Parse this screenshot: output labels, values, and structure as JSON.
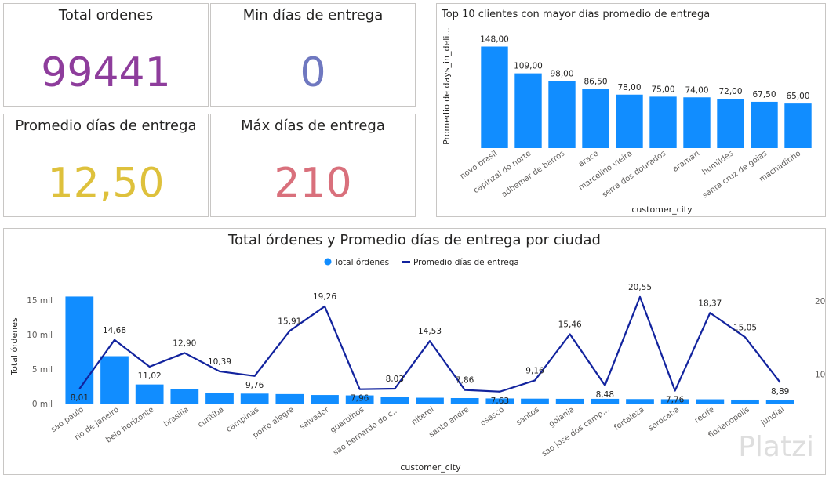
{
  "kpis": {
    "total_ordenes": {
      "title": "Total ordenes",
      "value": "99441",
      "color": "#8e3d9c"
    },
    "min_dias": {
      "title": "Min días de entrega",
      "value": "0",
      "color": "#6f78c0"
    },
    "promedio_dias": {
      "title": "Promedio días de entrega",
      "value": "12,50",
      "color": "#dec13c"
    },
    "max_dias": {
      "title": "Máx días de entrega",
      "value": "210",
      "color": "#d9707c"
    }
  },
  "watermark": "Platzi",
  "chart_data": [
    {
      "type": "bar",
      "title": "Top 10 clientes con mayor días promedio de entrega",
      "xlabel": "customer_city",
      "ylabel": "Promedio de days_in_deli...",
      "categories": [
        "novo brasil",
        "capinzal do norte",
        "adhemar de barros",
        "arace",
        "marcelino vieira",
        "serra dos dourados",
        "aramari",
        "humildes",
        "santa cruz de goias",
        "machadinho"
      ],
      "values": [
        148,
        109,
        98,
        86.5,
        78,
        75,
        74,
        72,
        67.5,
        65
      ],
      "value_labels": [
        "148,00",
        "109,00",
        "98,00",
        "86,50",
        "78,00",
        "75,00",
        "74,00",
        "72,00",
        "67,50",
        "65,00"
      ],
      "ylim": [
        0,
        160
      ],
      "color": "#118dff"
    },
    {
      "type": "bar+line",
      "title": "Total órdenes y Promedio días de entrega por ciudad",
      "xlabel": "customer_city",
      "ylabel": "Total órdenes",
      "legend": [
        "Total órdenes",
        "Promedio días de entrega"
      ],
      "legend_position": "top-center",
      "categories": [
        "sao paulo",
        "rio de janeiro",
        "belo horizonte",
        "brasilia",
        "curitiba",
        "campinas",
        "porto alegre",
        "salvador",
        "guarulhos",
        "sao bernardo do c...",
        "niteroi",
        "santo andre",
        "osasco",
        "santos",
        "goiania",
        "sao jose dos camp...",
        "fortaleza",
        "sorocaba",
        "recife",
        "florianopolis",
        "jundiai"
      ],
      "series": [
        {
          "name": "Total órdenes",
          "axis": "left",
          "color": "#118dff",
          "values": [
            15540,
            6882,
            2773,
            2131,
            1521,
            1444,
            1379,
            1245,
            1189,
            938,
            850,
            797,
            746,
            717,
            692,
            691,
            654,
            633,
            621,
            570,
            565
          ]
        },
        {
          "name": "Promedio días de entrega",
          "axis": "right",
          "color": "#12239e",
          "values": [
            8.01,
            14.68,
            11.02,
            12.9,
            10.39,
            9.76,
            15.91,
            19.26,
            7.96,
            8.03,
            14.53,
            7.86,
            7.63,
            9.16,
            15.46,
            8.48,
            20.55,
            7.76,
            18.37,
            15.05,
            8.89
          ],
          "value_labels": [
            "8,01",
            "14,68",
            "11,02",
            "12,90",
            "10,39",
            "9,76",
            "15,91",
            "19,26",
            "7,96",
            "8,03",
            "14,53",
            "7,86",
            "7,63",
            "9,16",
            "15,46",
            "8,48",
            "20,55",
            "7,76",
            "18,37",
            "15,05",
            "8,89"
          ]
        }
      ],
      "yleft_ticks": [
        "0 mil",
        "5 mil",
        "10 mil",
        "15 mil"
      ],
      "yleft_tick_values": [
        0,
        5000,
        10000,
        15000
      ],
      "yleft_lim": [
        0,
        16500
      ],
      "yright_ticks": [
        "10",
        "20"
      ],
      "yright_tick_values": [
        10,
        20
      ],
      "yright_lim": [
        6,
        21.5
      ]
    }
  ]
}
